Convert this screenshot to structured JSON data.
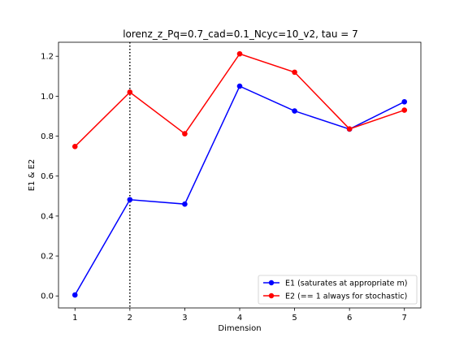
{
  "chart_data": {
    "type": "line",
    "title": "lorenz_z_Pq=0.7_cad=0.1_Ncyc=10_v2, tau = 7",
    "xlabel": "Dimension",
    "ylabel": "E1 & E2",
    "x": [
      1,
      2,
      3,
      4,
      5,
      6,
      7
    ],
    "xticks": [
      "1",
      "2",
      "3",
      "4",
      "5",
      "6",
      "7"
    ],
    "yticks": [
      "0.0",
      "0.2",
      "0.4",
      "0.6",
      "0.8",
      "1.0",
      "1.2"
    ],
    "xlim": [
      0.7,
      7.3
    ],
    "ylim": [
      -0.06,
      1.27
    ],
    "grid": false,
    "legend_position": "lower-right",
    "vline": {
      "x": 2,
      "style": "dotted",
      "color": "#000000"
    },
    "series": [
      {
        "name": "E1 (saturates at appropriate m)",
        "color": "#0000ff",
        "values": [
          0.005,
          0.482,
          0.46,
          1.05,
          0.926,
          0.835,
          0.972
        ]
      },
      {
        "name": "E2 (== 1 always for stochastic)",
        "color": "#ff0000",
        "values": [
          0.748,
          1.02,
          0.812,
          1.212,
          1.12,
          0.836,
          0.93
        ]
      }
    ]
  }
}
